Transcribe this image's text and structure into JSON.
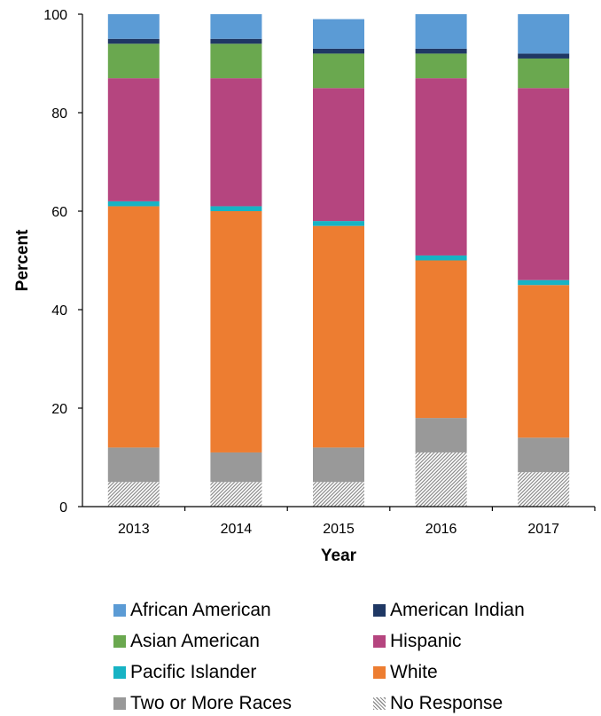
{
  "chart_data": {
    "type": "bar",
    "stacked": true,
    "categories": [
      "2013",
      "2014",
      "2015",
      "2016",
      "2017"
    ],
    "xlabel": "Year",
    "ylabel": "Percent",
    "ylim": [
      0,
      100
    ],
    "yticks": [
      "0",
      "20",
      "40",
      "60",
      "80",
      "100"
    ],
    "grid": false,
    "legend_position": "bottom",
    "series": [
      {
        "name": "No Response",
        "color": "#a6a6a6",
        "pattern": "hatch",
        "values": [
          5,
          5,
          5,
          11,
          7
        ]
      },
      {
        "name": "Two or More Races",
        "color": "#999999",
        "values": [
          7,
          6,
          7,
          7,
          7
        ]
      },
      {
        "name": "White",
        "color": "#ed7d31",
        "values": [
          49,
          49,
          45,
          32,
          31
        ]
      },
      {
        "name": "Pacific Islander",
        "color": "#17b3c4",
        "values": [
          1,
          1,
          1,
          1,
          1
        ]
      },
      {
        "name": "Hispanic",
        "color": "#b5457f",
        "values": [
          25,
          26,
          27,
          36,
          39
        ]
      },
      {
        "name": "Asian American",
        "color": "#6aa84f",
        "values": [
          7,
          7,
          7,
          5,
          6
        ]
      },
      {
        "name": "American Indian",
        "color": "#1f3864",
        "values": [
          1,
          1,
          1,
          1,
          1
        ]
      },
      {
        "name": "African American",
        "color": "#5b9bd5",
        "values": [
          5,
          5,
          6,
          7,
          8
        ]
      }
    ]
  },
  "legend": {
    "items": [
      {
        "name": "African American",
        "color": "#5b9bd5",
        "pattern": "solid"
      },
      {
        "name": "American Indian",
        "color": "#1f3864",
        "pattern": "solid"
      },
      {
        "name": "Asian American",
        "color": "#6aa84f",
        "pattern": "solid"
      },
      {
        "name": "Hispanic",
        "color": "#b5457f",
        "pattern": "solid"
      },
      {
        "name": "Pacific Islander",
        "color": "#17b3c4",
        "pattern": "solid"
      },
      {
        "name": "White",
        "color": "#ed7d31",
        "pattern": "solid"
      },
      {
        "name": "Two or More Races",
        "color": "#999999",
        "pattern": "solid"
      },
      {
        "name": "No Response",
        "color": "#a6a6a6",
        "pattern": "hatch"
      }
    ]
  }
}
